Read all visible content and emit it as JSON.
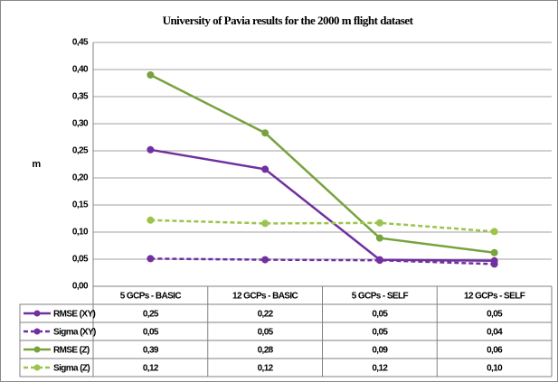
{
  "chart_data": {
    "type": "line",
    "title": "University of Pavia results for the 2000 m flight dataset",
    "y_label": "m",
    "categories": [
      "5 GCPs - BASIC",
      "12 GCPs - BASIC",
      "5 GCPs - SELF",
      "12 GCPs - SELF"
    ],
    "series": [
      {
        "name": "RMSE (XY)",
        "color": "#7030a0",
        "dashed": false,
        "values": [
          0.252,
          0.216,
          0.049,
          0.047
        ],
        "value_labels": [
          "0,25",
          "0,22",
          "0,05",
          "0,05"
        ]
      },
      {
        "name": "Sigma (XY)",
        "color": "#7030a0",
        "dashed": true,
        "values": [
          0.051,
          0.049,
          0.048,
          0.041
        ],
        "value_labels": [
          "0,05",
          "0,05",
          "0,05",
          "0,04"
        ]
      },
      {
        "name": "RMSE (Z)",
        "color": "#77a33e",
        "dashed": false,
        "values": [
          0.39,
          0.283,
          0.089,
          0.062
        ],
        "value_labels": [
          "0,39",
          "0,28",
          "0,09",
          "0,06"
        ]
      },
      {
        "name": "Sigma (Z)",
        "color": "#9bc54a",
        "dashed": true,
        "values": [
          0.122,
          0.116,
          0.117,
          0.101
        ],
        "value_labels": [
          "0,12",
          "0,12",
          "0,12",
          "0,10"
        ]
      }
    ],
    "ylim": [
      0,
      0.45
    ],
    "yticks": [
      {
        "value": 0,
        "label": "0,00"
      },
      {
        "value": 0.05,
        "label": "0,05"
      },
      {
        "value": 0.1,
        "label": "0,10"
      },
      {
        "value": 0.15,
        "label": "0,15"
      },
      {
        "value": 0.2,
        "label": "0,20"
      },
      {
        "value": 0.25,
        "label": "0,25"
      },
      {
        "value": 0.3,
        "label": "0,30"
      },
      {
        "value": 0.35,
        "label": "0,35"
      },
      {
        "value": 0.4,
        "label": "0,40"
      },
      {
        "value": 0.45,
        "label": "0,45"
      }
    ],
    "grid": true
  }
}
